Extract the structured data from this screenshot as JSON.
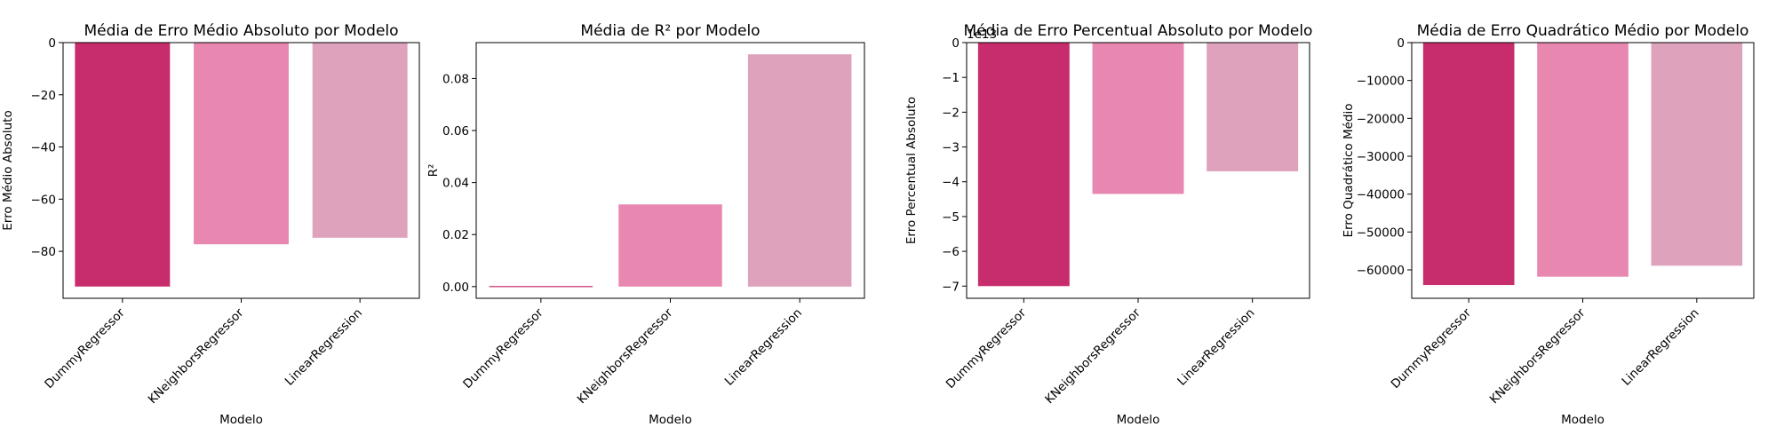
{
  "chart_data": [
    {
      "type": "bar",
      "title": "Média de Erro Médio Absoluto por Modelo",
      "xlabel": "Modelo",
      "ylabel": "Erro Médio Absoluto",
      "categories": [
        "DummyRegressor",
        "KNeighborsRegressor",
        "LinearRegression"
      ],
      "values": [
        -93.5,
        -77.3,
        -74.8
      ],
      "colors": [
        "#c72c6c",
        "#e888b0",
        "#dea2bc"
      ],
      "ylim": [
        -98,
        0
      ],
      "yticks": [
        0,
        -20,
        -40,
        -60,
        -80
      ],
      "ytick_labels": [
        "0",
        "−20",
        "−40",
        "−60",
        "−80"
      ],
      "offset_label": ""
    },
    {
      "type": "bar",
      "title": "Média de R² por Modelo",
      "xlabel": "Modelo",
      "ylabel": "R²",
      "categories": [
        "DummyRegressor",
        "KNeighborsRegressor",
        "LinearRegression"
      ],
      "values": [
        -0.0002,
        0.0316,
        0.0893
      ],
      "colors": [
        "#c72c6c",
        "#e888b0",
        "#dea2bc"
      ],
      "ylim": [
        -0.0045,
        0.0938
      ],
      "yticks": [
        0.0,
        0.02,
        0.04,
        0.06,
        0.08
      ],
      "ytick_labels": [
        "0.00",
        "0.02",
        "0.04",
        "0.06",
        "0.08"
      ],
      "offset_label": ""
    },
    {
      "type": "bar",
      "title": "Média de Erro Percentual Absoluto por Modelo",
      "xlabel": "Modelo",
      "ylabel": "Erro Percentual Absoluto",
      "categories": [
        "DummyRegressor",
        "KNeighborsRegressor",
        "LinearRegression"
      ],
      "values": [
        -7.0,
        -4.35,
        -3.7
      ],
      "colors": [
        "#c72c6c",
        "#e888b0",
        "#dea2bc"
      ],
      "ylim": [
        -7.35,
        0
      ],
      "yticks": [
        0,
        -1,
        -2,
        -3,
        -4,
        -5,
        -6,
        -7
      ],
      "ytick_labels": [
        "0",
        "−1",
        "−2",
        "−3",
        "−4",
        "−5",
        "−6",
        "−7"
      ],
      "offset_label": "1e13"
    },
    {
      "type": "bar",
      "title": "Média de Erro Quadrático Médio por Modelo",
      "xlabel": "Modelo",
      "ylabel": "Erro Quadrático Médio",
      "categories": [
        "DummyRegressor",
        "KNeighborsRegressor",
        "LinearRegression"
      ],
      "values": [
        -64000,
        -61800,
        -58900
      ],
      "colors": [
        "#c72c6c",
        "#e888b0",
        "#dea2bc"
      ],
      "ylim": [
        -67500,
        0
      ],
      "yticks": [
        0,
        -10000,
        -20000,
        -30000,
        -40000,
        -50000,
        -60000
      ],
      "ytick_labels": [
        "0",
        "−10000",
        "−20000",
        "−30000",
        "−40000",
        "−50000",
        "−60000"
      ],
      "offset_label": ""
    }
  ]
}
